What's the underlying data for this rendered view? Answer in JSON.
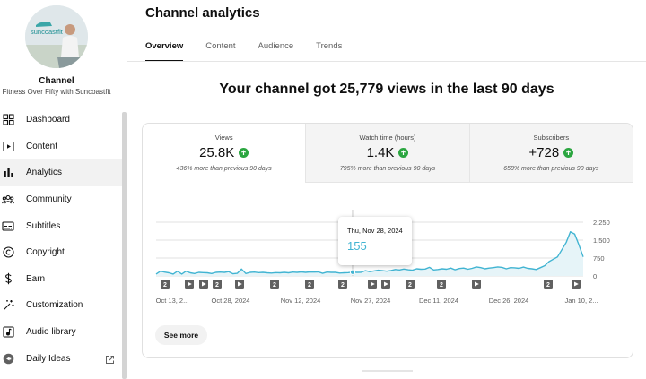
{
  "sidebar": {
    "avatar_text": "suncoastfit",
    "channel_label": "Channel",
    "channel_name": "Fitness Over Fifty with Suncoastfit",
    "items": [
      {
        "label": "Dashboard",
        "icon": "dashboard-icon",
        "active": false
      },
      {
        "label": "Content",
        "icon": "content-icon",
        "active": false
      },
      {
        "label": "Analytics",
        "icon": "analytics-icon",
        "active": true
      },
      {
        "label": "Community",
        "icon": "community-icon",
        "active": false
      },
      {
        "label": "Subtitles",
        "icon": "subtitles-icon",
        "active": false
      },
      {
        "label": "Copyright",
        "icon": "copyright-icon",
        "active": false
      },
      {
        "label": "Earn",
        "icon": "earn-icon",
        "active": false
      },
      {
        "label": "Customization",
        "icon": "customization-icon",
        "active": false
      },
      {
        "label": "Audio library",
        "icon": "audio-library-icon",
        "active": false
      },
      {
        "label": "Daily Ideas",
        "icon": "daily-ideas-icon",
        "active": false,
        "external": true
      }
    ]
  },
  "header": {
    "title": "Channel analytics",
    "tabs": [
      {
        "label": "Overview",
        "active": true
      },
      {
        "label": "Content",
        "active": false
      },
      {
        "label": "Audience",
        "active": false
      },
      {
        "label": "Trends",
        "active": false
      }
    ]
  },
  "headline": "Your channel got 25,779 views in the last 90 days",
  "metrics": [
    {
      "title": "Views",
      "value": "25.8K",
      "sub": "436% more than previous 90 days",
      "active": true
    },
    {
      "title": "Watch time (hours)",
      "value": "1.4K",
      "sub": "795% more than previous 90 days",
      "active": false
    },
    {
      "title": "Subscribers",
      "value": "+728",
      "sub": "658% more than previous 90 days",
      "active": false
    }
  ],
  "chart_data": {
    "type": "area",
    "series": [
      {
        "values": [
          80,
          200,
          160,
          130,
          80,
          200,
          80,
          200,
          130,
          100,
          150,
          140,
          130,
          100,
          150,
          160,
          150,
          180,
          90,
          110,
          290,
          100,
          150,
          160,
          140,
          150,
          130,
          120,
          140,
          130,
          150,
          130,
          160,
          150,
          170,
          150,
          170,
          160,
          170,
          110,
          160,
          150,
          150,
          120,
          130,
          140,
          160,
          150,
          155,
          220,
          180,
          210,
          240,
          220,
          200,
          230,
          270,
          250,
          290,
          260,
          240,
          300,
          280,
          290,
          360,
          250,
          270,
          300,
          280,
          330,
          260,
          310,
          330,
          280,
          320,
          380,
          350,
          300,
          330,
          350,
          380,
          360,
          300,
          350,
          340,
          320,
          370,
          320,
          300,
          270,
          350,
          430,
          600,
          700,
          800,
          1100,
          1400,
          1850,
          1750,
          1300,
          800
        ]
      }
    ],
    "x_tick_labels": [
      "Oct 13, 2...",
      "Oct 28, 2024",
      "Nov 12, 2024",
      "Nov 27, 2024",
      "Dec 11, 2024",
      "Dec 26, 2024",
      "Jan 10, 2..."
    ],
    "y_tick_labels": [
      "2,250",
      "1,500",
      "750",
      "0"
    ],
    "ylim": [
      0,
      2250
    ],
    "grid": true,
    "markers": [
      "2",
      "play",
      "play",
      "2",
      "play",
      "2",
      "2",
      "2",
      "play",
      "play",
      "2",
      "2",
      "play",
      "2",
      "play"
    ],
    "tooltip": {
      "date": "Thu, Nov 28, 2024",
      "value": "155"
    },
    "colors": {
      "line": "#41b4d2",
      "fill": "#e6f4f8",
      "grid": "#e0e0e0",
      "marker": "#606060"
    }
  },
  "see_more_label": "See more"
}
